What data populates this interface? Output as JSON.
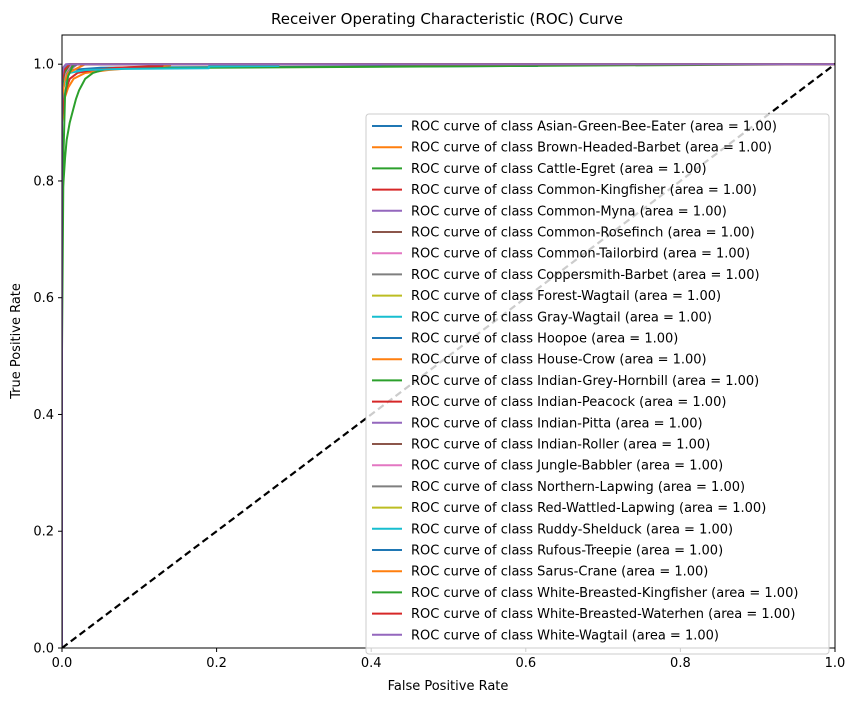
{
  "chart_data": {
    "type": "line",
    "title": "Receiver Operating Characteristic (ROC) Curve",
    "xlabel": "False Positive Rate",
    "ylabel": "True Positive Rate",
    "xlim": [
      0.0,
      1.0
    ],
    "ylim": [
      0.0,
      1.05
    ],
    "xticks": [
      "0.0",
      "0.2",
      "0.4",
      "0.6",
      "0.8",
      "1.0"
    ],
    "yticks": [
      "0.0",
      "0.2",
      "0.4",
      "0.6",
      "0.8",
      "1.0"
    ],
    "grid": false,
    "legend_position": "lower-right",
    "diagonal": {
      "x": [
        0,
        1
      ],
      "y": [
        0,
        1
      ],
      "color": "#000000",
      "style": "dashed"
    },
    "series": [
      {
        "name": "ROC curve of class Asian-Green-Bee-Eater (area = 1.00)",
        "color": "#1f77b4",
        "x": [
          0,
          0,
          0.002,
          0.005,
          0.01,
          0.05,
          0.2,
          0.615,
          0.615,
          1.0
        ],
        "y": [
          0,
          0.9,
          0.97,
          0.985,
          0.99,
          0.994,
          0.995,
          0.997,
          1.0,
          1.0
        ]
      },
      {
        "name": "ROC curve of class Brown-Headed-Barbet (area = 1.00)",
        "color": "#ff7f0e",
        "x": [
          0,
          0,
          0.003,
          0.008,
          0.015,
          0.03,
          0.06,
          0.14,
          0.14,
          1.0
        ],
        "y": [
          0,
          0.9,
          0.94,
          0.96,
          0.975,
          0.985,
          0.99,
          0.998,
          1.0,
          1.0
        ]
      },
      {
        "name": "ROC curve of class Cattle-Egret (area = 1.00)",
        "color": "#2ca02c",
        "x": [
          0,
          0,
          0.002,
          0.004,
          0.006,
          0.01,
          0.014,
          0.018,
          0.022,
          0.026,
          0.03,
          0.04,
          0.06,
          1.0
        ],
        "y": [
          0,
          0.77,
          0.8,
          0.84,
          0.87,
          0.9,
          0.92,
          0.94,
          0.955,
          0.965,
          0.975,
          0.985,
          0.993,
          1.0
        ]
      },
      {
        "name": "ROC curve of class Common-Kingfisher (area = 1.00)",
        "color": "#d62728",
        "x": [
          0,
          0,
          0.003,
          0.006,
          0.01,
          0.02,
          0.04,
          0.07,
          0.13,
          0.13,
          1.0
        ],
        "y": [
          0,
          0.91,
          0.94,
          0.96,
          0.975,
          0.985,
          0.99,
          0.994,
          0.997,
          1.0,
          1.0
        ]
      },
      {
        "name": "ROC curve of class Common-Myna (area = 1.00)",
        "color": "#9467bd",
        "x": [
          0,
          0,
          0.002,
          0.005,
          0.01,
          0.02,
          1.0
        ],
        "y": [
          0,
          0.96,
          0.98,
          0.99,
          0.995,
          1.0,
          1.0
        ]
      },
      {
        "name": "ROC curve of class Common-Rosefinch (area = 1.00)",
        "color": "#8c564b",
        "x": [
          0,
          0,
          0.003,
          0.008,
          0.015,
          1.0
        ],
        "y": [
          0,
          0.95,
          0.975,
          0.99,
          1.0,
          1.0
        ]
      },
      {
        "name": "ROC curve of class Common-Tailorbird (area = 1.00)",
        "color": "#e377c2",
        "x": [
          0,
          0,
          0.004,
          0.01,
          0.02,
          1.0
        ],
        "y": [
          0,
          0.96,
          0.98,
          0.99,
          1.0,
          1.0
        ]
      },
      {
        "name": "ROC curve of class Coppersmith-Barbet (area = 1.00)",
        "color": "#7f7f7f",
        "x": [
          0,
          0,
          0.003,
          0.008,
          0.02,
          1.0
        ],
        "y": [
          0,
          0.96,
          0.98,
          0.99,
          1.0,
          1.0
        ]
      },
      {
        "name": "ROC curve of class Forest-Wagtail (area = 1.00)",
        "color": "#bcbd22",
        "x": [
          0,
          0,
          0.003,
          0.01,
          1.0
        ],
        "y": [
          0,
          0.97,
          0.99,
          1.0,
          1.0
        ]
      },
      {
        "name": "ROC curve of class Gray-Wagtail (area = 1.00)",
        "color": "#17becf",
        "x": [
          0,
          0,
          0.004,
          0.01,
          0.03,
          0.08,
          0.19,
          0.19,
          0.28,
          0.28,
          1.0
        ],
        "y": [
          0,
          0.95,
          0.97,
          0.985,
          0.99,
          0.992,
          0.993,
          0.996,
          0.997,
          1.0,
          1.0
        ]
      },
      {
        "name": "ROC curve of class Hoopoe (area = 1.00)",
        "color": "#1f77b4",
        "x": [
          0,
          0,
          0.003,
          0.008,
          0.02,
          1.0
        ],
        "y": [
          0,
          0.97,
          0.985,
          0.995,
          1.0,
          1.0
        ]
      },
      {
        "name": "ROC curve of class House-Crow (area = 1.00)",
        "color": "#ff7f0e",
        "x": [
          0,
          0,
          0.003,
          0.008,
          0.03,
          1.0
        ],
        "y": [
          0,
          0.94,
          0.97,
          0.985,
          1.0,
          1.0
        ]
      },
      {
        "name": "ROC curve of class Indian-Grey-Hornbill (area = 1.00)",
        "color": "#2ca02c",
        "x": [
          0,
          0,
          0.002,
          0.004,
          0.008,
          0.015,
          1.0
        ],
        "y": [
          0,
          0.51,
          0.85,
          0.95,
          0.98,
          1.0,
          1.0
        ]
      },
      {
        "name": "ROC curve of class Indian-Peacock (area = 1.00)",
        "color": "#d62728",
        "x": [
          0,
          0,
          0.003,
          0.01,
          1.0
        ],
        "y": [
          0,
          0.97,
          0.99,
          1.0,
          1.0
        ]
      },
      {
        "name": "ROC curve of class Indian-Pitta (area = 1.00)",
        "color": "#9467bd",
        "x": [
          0,
          0,
          0.003,
          0.006,
          1.0
        ],
        "y": [
          0,
          0.98,
          0.995,
          1.0,
          1.0
        ]
      },
      {
        "name": "ROC curve of class Indian-Roller (area = 1.00)",
        "color": "#8c564b",
        "x": [
          0,
          0,
          0.003,
          0.008,
          1.0
        ],
        "y": [
          0,
          0.97,
          0.99,
          1.0,
          1.0
        ]
      },
      {
        "name": "ROC curve of class Jungle-Babbler (area = 1.00)",
        "color": "#e377c2",
        "x": [
          0,
          0,
          0.004,
          0.012,
          1.0
        ],
        "y": [
          0,
          0.96,
          0.985,
          1.0,
          1.0
        ]
      },
      {
        "name": "ROC curve of class Northern-Lapwing (area = 1.00)",
        "color": "#7f7f7f",
        "x": [
          0,
          0,
          0.003,
          0.01,
          1.0
        ],
        "y": [
          0,
          0.97,
          0.99,
          1.0,
          1.0
        ]
      },
      {
        "name": "ROC curve of class Red-Wattled-Lapwing (area = 1.00)",
        "color": "#bcbd22",
        "x": [
          0,
          0,
          0.003,
          0.01,
          1.0
        ],
        "y": [
          0,
          0.97,
          0.99,
          1.0,
          1.0
        ]
      },
      {
        "name": "ROC curve of class Ruddy-Shelduck (area = 1.00)",
        "color": "#17becf",
        "x": [
          0,
          0,
          0.003,
          0.008,
          1.0
        ],
        "y": [
          0,
          0.98,
          0.99,
          1.0,
          1.0
        ]
      },
      {
        "name": "ROC curve of class Rufous-Treepie (area = 1.00)",
        "color": "#1f77b4",
        "x": [
          0,
          0,
          0.004,
          0.01,
          1.0
        ],
        "y": [
          0,
          0.97,
          0.99,
          1.0,
          1.0
        ]
      },
      {
        "name": "ROC curve of class Sarus-Crane (area = 1.00)",
        "color": "#ff7f0e",
        "x": [
          0,
          0,
          0.003,
          0.01,
          1.0
        ],
        "y": [
          0,
          0.975,
          0.99,
          1.0,
          1.0
        ]
      },
      {
        "name": "ROC curve of class White-Breasted-Kingfisher (area = 1.00)",
        "color": "#2ca02c",
        "x": [
          0,
          0,
          0.003,
          0.01,
          1.0
        ],
        "y": [
          0,
          0.96,
          0.985,
          1.0,
          1.0
        ]
      },
      {
        "name": "ROC curve of class White-Breasted-Waterhen (area = 1.00)",
        "color": "#d62728",
        "x": [
          0,
          0,
          0.003,
          0.01,
          1.0
        ],
        "y": [
          0,
          0.97,
          0.99,
          1.0,
          1.0
        ]
      },
      {
        "name": "ROC curve of class White-Wagtail (area = 1.00)",
        "color": "#9467bd",
        "x": [
          0,
          0,
          0.002,
          0.005,
          1.0
        ],
        "y": [
          0,
          0.98,
          0.995,
          1.0,
          1.0
        ]
      }
    ]
  }
}
